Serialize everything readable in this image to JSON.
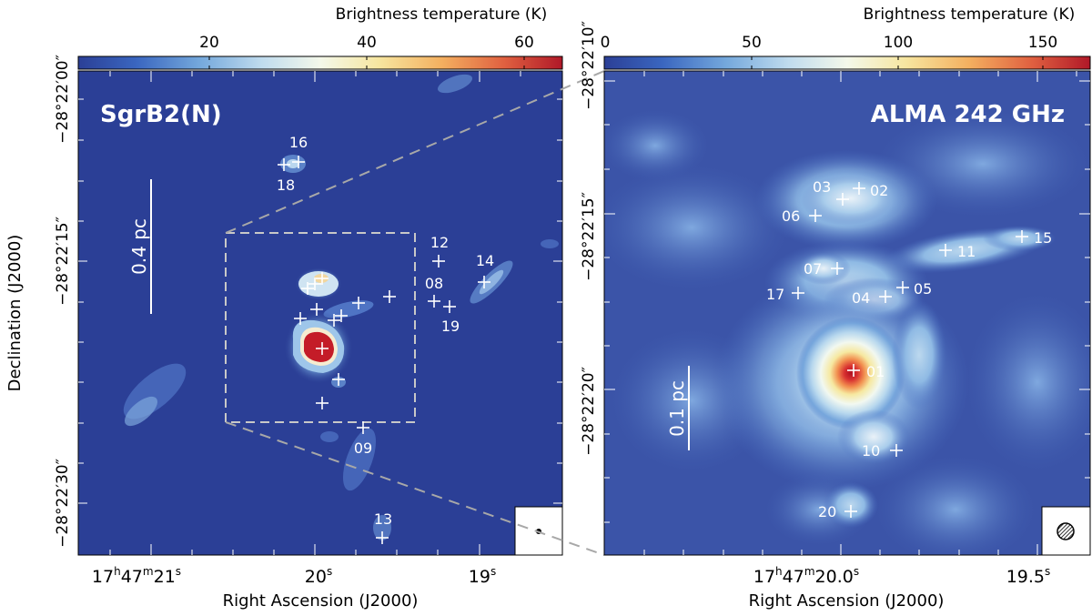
{
  "left_panel": {
    "colorbar": {
      "label": "Brightness temperature (K)",
      "ticks": [
        "20",
        "40",
        "60"
      ]
    },
    "title": "SgrB2(N)",
    "scalebar_label": "0.4 pc",
    "dec_ticks": [
      "−28°22′00″",
      "−28°22′15″",
      "−28°22′30″"
    ],
    "ra_ticks": {
      "t1_main": "17",
      "t1_h": "h",
      "t1_mid": "47",
      "t1_m": "m",
      "t1_end": "21",
      "t1_s": "s",
      "t2_main": "20",
      "t2_s": "s",
      "t3_main": "19",
      "t3_s": "s"
    },
    "xlabel": "Right Ascension (J2000)",
    "ylabel": "Declination (J2000)",
    "source_labels": [
      "16",
      "18",
      "12",
      "14",
      "08",
      "19",
      "09",
      "13"
    ]
  },
  "right_panel": {
    "colorbar": {
      "label": "Brightness temperature (K)",
      "ticks": [
        "0",
        "50",
        "100",
        "150"
      ]
    },
    "title": "ALMA 242 GHz",
    "scalebar_label": "0.1 pc",
    "dec_ticks": [
      "−28°22′10″",
      "−28°22′15″",
      "−28°22′20″"
    ],
    "ra_ticks": {
      "t1_main": "17",
      "t1_h": "h",
      "t1_mid": "47",
      "t1_m": "m",
      "t1_end": "20.0",
      "t1_s": "s",
      "t2_main": "19.5",
      "t2_s": "s"
    },
    "xlabel": "Right Ascension (J2000)",
    "source_labels": [
      "03",
      "02",
      "06",
      "15",
      "11",
      "07",
      "17",
      "04",
      "05",
      "01",
      "10",
      "20"
    ]
  },
  "colors": {
    "background_map": "#2b3f96",
    "frame": "#000000",
    "marker": "#ffffff",
    "zoom_box": "#b0b0b0"
  }
}
